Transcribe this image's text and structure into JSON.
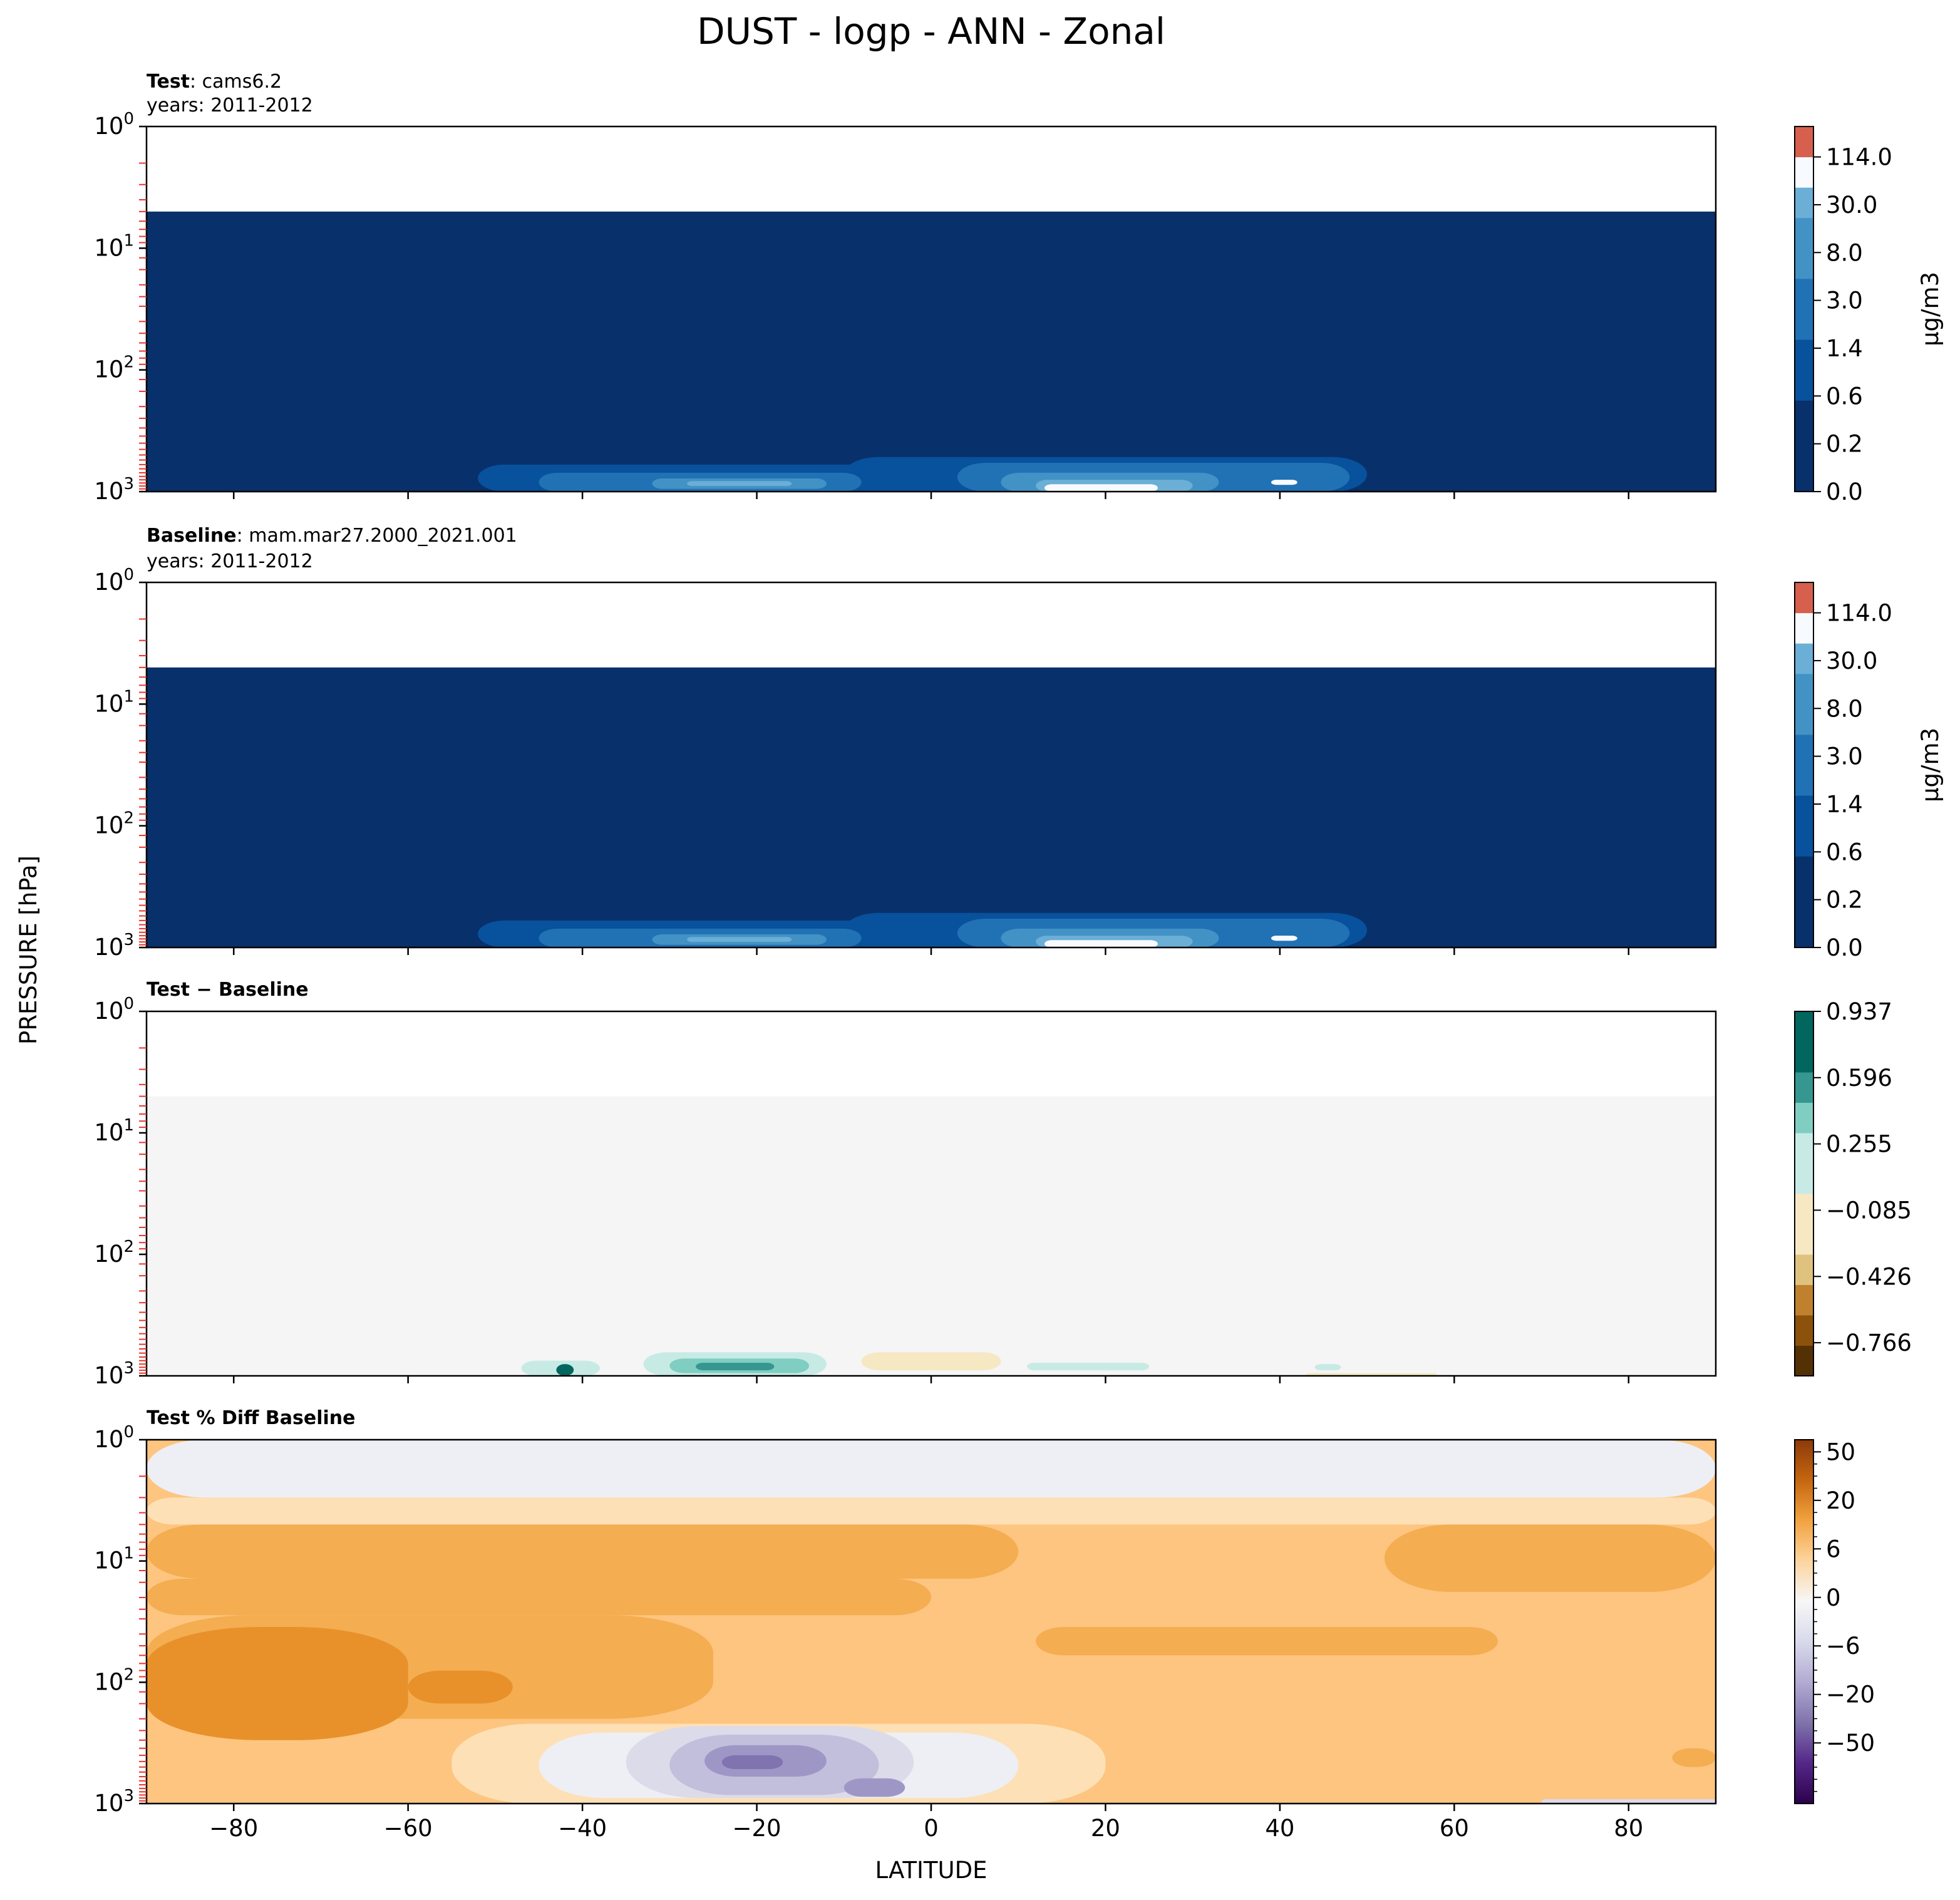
{
  "title": "DUST - logp - ANN - Zonal",
  "shared_ylabel": "PRESSURE [hPa]",
  "shared_xlabel": "LATITUDE",
  "colors": {
    "navy": "#08306b",
    "blue_dark": "#08519c",
    "blue_mid": "#2171b5",
    "blue_light": "#4292c6",
    "blue_pale": "#6baed6",
    "sky": "#9ecae1",
    "near_white": "#f7fbff",
    "red_top": "#d6604d",
    "diff_bg": "#f4f5f4",
    "teal_dark": "#01665e",
    "teal_mid": "#35978f",
    "teal_light": "#80cdc1",
    "teal_pale": "#c7eae5",
    "tan_pale": "#f6e8c3",
    "tan": "#dfc27d",
    "brown": "#bf812d",
    "brown_dark": "#8c510a",
    "brown_darkest": "#543005",
    "pct_gray": "#eeeff4",
    "orange_pale": "#fee0b6",
    "orange_light": "#fdc57f",
    "orange": "#f5ad52",
    "orange_dark": "#e8912a",
    "purple_pale": "#dcdbea",
    "purple_light": "#c2bfdc",
    "purple": "#9e97c6",
    "purple_dark": "#7f73b0"
  },
  "chart_data": [
    {
      "type": "heatmap",
      "panel_label_bold": "Test",
      "panel_label_rest": ": cams6.2",
      "subtitle": "years: 2011-2012",
      "xlim": [
        -90,
        90
      ],
      "ylim": [
        1000,
        1
      ],
      "y_scale": "log",
      "ytick_labels": [
        {
          "value": 1,
          "base": "10",
          "exp": "0"
        },
        {
          "value": 10,
          "base": "10",
          "exp": "1"
        },
        {
          "value": 100,
          "base": "10",
          "exp": "2"
        },
        {
          "value": 1000,
          "base": "10",
          "exp": "3"
        }
      ],
      "model_levels_shown": true,
      "colorbar": {
        "type": "discrete",
        "label": "μg/m3",
        "tick_labels": [
          "114.0",
          "30.0",
          "8.0",
          "3.0",
          "1.4",
          "0.6",
          "0.2",
          "0.0"
        ],
        "colors": [
          "navy",
          "navy",
          "navy",
          "blue_dark",
          "blue_dark",
          "blue_mid",
          "blue_mid",
          "blue_light",
          "blue_light",
          "blue_pale",
          "near_white",
          "red_top"
        ]
      },
      "data_top_pressure": 5,
      "background_color": "navy",
      "regions": [
        {
          "color": "blue_dark",
          "lon_range": [
            -52,
            47
          ],
          "p_range": [
            600,
            1000
          ]
        },
        {
          "color": "blue_dark",
          "lon_range": [
            -10,
            50
          ],
          "p_range": [
            520,
            1000
          ]
        },
        {
          "color": "blue_mid",
          "lon_range": [
            -45,
            -8
          ],
          "p_range": [
            700,
            1000
          ]
        },
        {
          "color": "blue_mid",
          "lon_range": [
            3,
            48
          ],
          "p_range": [
            580,
            1000
          ]
        },
        {
          "color": "blue_light",
          "lon_range": [
            -32,
            -12
          ],
          "p_range": [
            780,
            950
          ]
        },
        {
          "color": "blue_light",
          "lon_range": [
            8,
            33
          ],
          "p_range": [
            700,
            1000
          ]
        },
        {
          "color": "blue_pale",
          "lon_range": [
            -28,
            -16
          ],
          "p_range": [
            820,
            900
          ]
        },
        {
          "color": "blue_pale",
          "lon_range": [
            12,
            30
          ],
          "p_range": [
            800,
            1000
          ]
        },
        {
          "color": "near_white",
          "lon_range": [
            13,
            26
          ],
          "p_range": [
            870,
            1000
          ]
        },
        {
          "color": "near_white",
          "lon_range": [
            39,
            42
          ],
          "p_range": [
            800,
            880
          ]
        }
      ]
    },
    {
      "type": "heatmap",
      "panel_label_bold": "Baseline",
      "panel_label_rest": ": mam.mar27.2000_2021.001",
      "subtitle": "years: 2011-2012",
      "xlim": [
        -90,
        90
      ],
      "ylim": [
        1000,
        1
      ],
      "y_scale": "log",
      "ytick_labels": [
        {
          "value": 1,
          "base": "10",
          "exp": "0"
        },
        {
          "value": 10,
          "base": "10",
          "exp": "1"
        },
        {
          "value": 100,
          "base": "10",
          "exp": "2"
        },
        {
          "value": 1000,
          "base": "10",
          "exp": "3"
        }
      ],
      "model_levels_shown": true,
      "colorbar": {
        "type": "discrete",
        "label": "μg/m3",
        "tick_labels": [
          "114.0",
          "30.0",
          "8.0",
          "3.0",
          "1.4",
          "0.6",
          "0.2",
          "0.0"
        ],
        "colors": [
          "navy",
          "navy",
          "navy",
          "blue_dark",
          "blue_dark",
          "blue_mid",
          "blue_mid",
          "blue_light",
          "blue_light",
          "blue_pale",
          "near_white",
          "red_top"
        ]
      },
      "data_top_pressure": 5,
      "background_color": "navy",
      "regions": [
        {
          "color": "blue_dark",
          "lon_range": [
            -52,
            47
          ],
          "p_range": [
            600,
            1000
          ]
        },
        {
          "color": "blue_dark",
          "lon_range": [
            -10,
            50
          ],
          "p_range": [
            520,
            1000
          ]
        },
        {
          "color": "blue_mid",
          "lon_range": [
            -45,
            -8
          ],
          "p_range": [
            700,
            1000
          ]
        },
        {
          "color": "blue_mid",
          "lon_range": [
            3,
            48
          ],
          "p_range": [
            580,
            1000
          ]
        },
        {
          "color": "blue_light",
          "lon_range": [
            -32,
            -12
          ],
          "p_range": [
            780,
            950
          ]
        },
        {
          "color": "blue_light",
          "lon_range": [
            8,
            33
          ],
          "p_range": [
            700,
            1000
          ]
        },
        {
          "color": "blue_pale",
          "lon_range": [
            -28,
            -16
          ],
          "p_range": [
            820,
            900
          ]
        },
        {
          "color": "blue_pale",
          "lon_range": [
            12,
            30
          ],
          "p_range": [
            800,
            1000
          ]
        },
        {
          "color": "near_white",
          "lon_range": [
            13,
            26
          ],
          "p_range": [
            870,
            1000
          ]
        },
        {
          "color": "near_white",
          "lon_range": [
            39,
            42
          ],
          "p_range": [
            800,
            880
          ]
        }
      ]
    },
    {
      "type": "heatmap",
      "panel_label_bold": "Test − Baseline",
      "panel_label_rest": "",
      "subtitle": "",
      "xlim": [
        -90,
        90
      ],
      "ylim": [
        1000,
        1
      ],
      "y_scale": "log",
      "ytick_labels": [
        {
          "value": 1,
          "base": "10",
          "exp": "0"
        },
        {
          "value": 10,
          "base": "10",
          "exp": "1"
        },
        {
          "value": 100,
          "base": "10",
          "exp": "2"
        },
        {
          "value": 1000,
          "base": "10",
          "exp": "3"
        }
      ],
      "model_levels_shown": true,
      "colorbar": {
        "type": "discrete",
        "label": "",
        "tick_labels": [
          "0.937",
          "0.596",
          "0.255",
          "−0.085",
          "−0.426",
          "−0.766"
        ],
        "colors": [
          "brown_darkest",
          "brown_dark",
          "brown",
          "tan",
          "tan_pale",
          "tan_pale",
          "teal_pale",
          "teal_pale",
          "teal_light",
          "teal_mid",
          "teal_dark",
          "teal_dark"
        ]
      },
      "data_top_pressure": 5,
      "background_color": "diff_bg",
      "regions": [
        {
          "color": "teal_pale",
          "lon_range": [
            -47,
            -38
          ],
          "p_range": [
            750,
            1000
          ]
        },
        {
          "color": "teal_pale",
          "lon_range": [
            -33,
            -12
          ],
          "p_range": [
            640,
            1000
          ]
        },
        {
          "color": "teal_light",
          "lon_range": [
            -30,
            -14
          ],
          "p_range": [
            720,
            950
          ]
        },
        {
          "color": "teal_mid",
          "lon_range": [
            -27,
            -18
          ],
          "p_range": [
            780,
            900
          ]
        },
        {
          "color": "teal_dark",
          "lon_range": [
            -43,
            -41
          ],
          "p_range": [
            800,
            1000
          ]
        },
        {
          "color": "tan_pale",
          "lon_range": [
            -8,
            8
          ],
          "p_range": [
            640,
            900
          ]
        },
        {
          "color": "teal_pale",
          "lon_range": [
            11,
            25
          ],
          "p_range": [
            780,
            900
          ]
        },
        {
          "color": "teal_pale",
          "lon_range": [
            44,
            47
          ],
          "p_range": [
            800,
            900
          ]
        },
        {
          "color": "tan_pale",
          "lon_range": [
            43,
            58
          ],
          "p_range": [
            950,
            1000
          ]
        }
      ]
    },
    {
      "type": "heatmap",
      "panel_label_bold": "Test % Diff Baseline",
      "panel_label_rest": "",
      "subtitle": "",
      "xlim": [
        -90,
        90
      ],
      "ylim": [
        1000,
        1
      ],
      "y_scale": "log",
      "ytick_labels": [
        {
          "value": 1,
          "base": "10",
          "exp": "0"
        },
        {
          "value": 10,
          "base": "10",
          "exp": "1"
        },
        {
          "value": 100,
          "base": "10",
          "exp": "2"
        },
        {
          "value": 1000,
          "base": "10",
          "exp": "3"
        }
      ],
      "model_levels_shown": true,
      "xtick_labels": [
        "−80",
        "−60",
        "−40",
        "−20",
        "0",
        "20",
        "40",
        "60",
        "80"
      ],
      "xtick_values": [
        -80,
        -60,
        -40,
        -20,
        0,
        20,
        40,
        60,
        80
      ],
      "colorbar": {
        "type": "continuous",
        "label": "",
        "tick_labels": [
          "50",
          "20",
          "6",
          "0",
          "−6",
          "−20",
          "−50"
        ],
        "gradient": [
          "#8c3a0a",
          "#c5660f",
          "#f1a340",
          "#fdd49e",
          "#f7f7f7",
          "#d8daeb",
          "#b2abd2",
          "#8073ac",
          "#542788",
          "#2d004b"
        ]
      },
      "data_top_pressure": 1,
      "background_color": "orange_light",
      "regions": [
        {
          "color": "pct_gray",
          "lon_range": [
            -90,
            90
          ],
          "p_range": [
            1,
            3
          ]
        },
        {
          "color": "orange_pale",
          "lon_range": [
            -90,
            90
          ],
          "p_range": [
            3,
            5
          ]
        },
        {
          "color": "orange",
          "lon_range": [
            -90,
            10
          ],
          "p_range": [
            5,
            14
          ]
        },
        {
          "color": "orange",
          "lon_range": [
            -90,
            0
          ],
          "p_range": [
            14,
            28
          ]
        },
        {
          "color": "orange",
          "lon_range": [
            -90,
            -25
          ],
          "p_range": [
            28,
            200
          ]
        },
        {
          "color": "orange",
          "lon_range": [
            52,
            90
          ],
          "p_range": [
            5,
            18
          ]
        },
        {
          "color": "orange",
          "lon_range": [
            12,
            65
          ],
          "p_range": [
            35,
            60
          ]
        },
        {
          "color": "orange_dark",
          "lon_range": [
            -90,
            -60
          ],
          "p_range": [
            35,
            300
          ]
        },
        {
          "color": "orange_dark",
          "lon_range": [
            -60,
            -48
          ],
          "p_range": [
            80,
            150
          ]
        },
        {
          "color": "orange_pale",
          "lon_range": [
            -55,
            20
          ],
          "p_range": [
            220,
            1000
          ]
        },
        {
          "color": "pct_gray",
          "lon_range": [
            -45,
            10
          ],
          "p_range": [
            260,
            900
          ]
        },
        {
          "color": "purple_pale",
          "lon_range": [
            -35,
            -2
          ],
          "p_range": [
            230,
            900
          ]
        },
        {
          "color": "purple_light",
          "lon_range": [
            -30,
            -6
          ],
          "p_range": [
            270,
            850
          ]
        },
        {
          "color": "purple",
          "lon_range": [
            -26,
            -12
          ],
          "p_range": [
            330,
            600
          ]
        },
        {
          "color": "purple_dark",
          "lon_range": [
            -24,
            -17
          ],
          "p_range": [
            400,
            520
          ]
        },
        {
          "color": "purple",
          "lon_range": [
            -10,
            -3
          ],
          "p_range": [
            620,
            880
          ]
        },
        {
          "color": "orange",
          "lon_range": [
            85,
            90
          ],
          "p_range": [
            350,
            500
          ]
        },
        {
          "color": "purple_pale",
          "lon_range": [
            70,
            90
          ],
          "p_range": [
            920,
            1000
          ]
        }
      ]
    }
  ]
}
